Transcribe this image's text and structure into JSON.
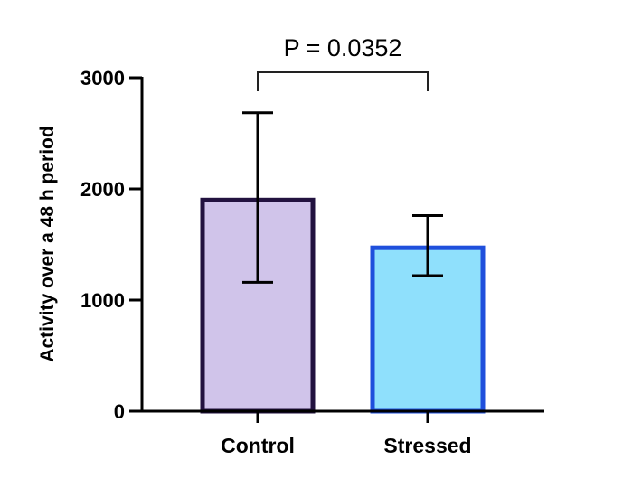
{
  "chart_data": {
    "type": "bar",
    "title": "",
    "xlabel": "",
    "ylabel": "Activity over a 48 h period",
    "ylim": [
      0,
      3000
    ],
    "yticks": [
      0,
      1000,
      2000,
      3000
    ],
    "grid": false,
    "categories": [
      "Control",
      "Stressed"
    ],
    "values": [
      1900,
      1470
    ],
    "error_low": [
      1160,
      1220
    ],
    "error_high": [
      2685,
      1760
    ],
    "fill_colors": [
      "#d0c4ea",
      "#8fe0fc"
    ],
    "edge_colors": [
      "#22123f",
      "#1f4fdc"
    ],
    "annotation": {
      "text": "P = 0.0352",
      "between": [
        "Control",
        "Stressed"
      ]
    }
  }
}
